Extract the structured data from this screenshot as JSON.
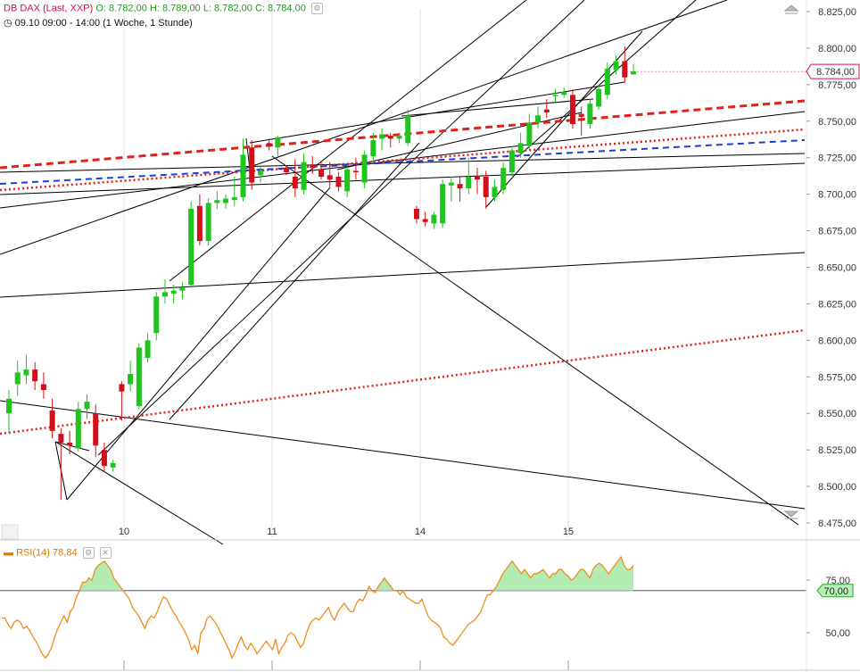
{
  "header": {
    "symbol": "DB DAX (Last, XXP)",
    "open": "O: 8.782,00",
    "high": "H: 8.789,00",
    "low": "L: 8.782,00",
    "close": "C: 8.784,00",
    "period": "09.10 09:00 - 14:00 (1 Woche, 1 Stunde)"
  },
  "rsi_panel": {
    "label": "RSI(14)",
    "value": "78,84"
  },
  "colors": {
    "up": "#1fc41f",
    "down": "#d0101a",
    "rsi_line": "#f08c1c",
    "rsi_fill": "#b2ecb2",
    "trend_red": "#e3201b",
    "trend_blue": "#1a3fd8"
  },
  "chart_data": [
    {
      "type": "candlestick",
      "title": "DB DAX (Last, XXP)",
      "y_axis": {
        "ticks": [
          "8.825,00",
          "8.800,00",
          "8.775,00",
          "8.750,00",
          "8.725,00",
          "8.700,00",
          "8.675,00",
          "8.650,00",
          "8.625,00",
          "8.600,00",
          "8.575,00",
          "8.550,00",
          "8.525,00",
          "8.500,00",
          "8.475,00"
        ],
        "ylim": [
          8470,
          8835
        ]
      },
      "x_axis": {
        "ticks": [
          "10",
          "11",
          "14",
          "15"
        ]
      },
      "last_price_label": "8.784,00",
      "last_price": 8784,
      "candles": [
        {
          "o": 8550,
          "h": 8566,
          "l": 8536,
          "c": 8560
        },
        {
          "o": 8570,
          "h": 8586,
          "l": 8562,
          "c": 8578
        },
        {
          "o": 8576,
          "h": 8590,
          "l": 8570,
          "c": 8580
        },
        {
          "o": 8580,
          "h": 8585,
          "l": 8566,
          "c": 8572
        },
        {
          "o": 8570,
          "h": 8578,
          "l": 8560,
          "c": 8566
        },
        {
          "o": 8552,
          "h": 8560,
          "l": 8533,
          "c": 8538
        },
        {
          "o": 8536,
          "h": 8540,
          "l": 8491,
          "c": 8530
        },
        {
          "o": 8530,
          "h": 8538,
          "l": 8522,
          "c": 8528
        },
        {
          "o": 8526,
          "h": 8558,
          "l": 8524,
          "c": 8553
        },
        {
          "o": 8553,
          "h": 8563,
          "l": 8546,
          "c": 8558
        },
        {
          "o": 8550,
          "h": 8556,
          "l": 8520,
          "c": 8528
        },
        {
          "o": 8525,
          "h": 8530,
          "l": 8510,
          "c": 8514
        },
        {
          "o": 8513,
          "h": 8518,
          "l": 8510,
          "c": 8516
        },
        {
          "o": 8570,
          "h": 8572,
          "l": 8545,
          "c": 8565
        },
        {
          "o": 8570,
          "h": 8586,
          "l": 8565,
          "c": 8577
        },
        {
          "o": 8555,
          "h": 8598,
          "l": 8553,
          "c": 8595
        },
        {
          "o": 8588,
          "h": 8605,
          "l": 8585,
          "c": 8600
        },
        {
          "o": 8605,
          "h": 8633,
          "l": 8600,
          "c": 8630
        },
        {
          "o": 8630,
          "h": 8642,
          "l": 8625,
          "c": 8633
        },
        {
          "o": 8632,
          "h": 8638,
          "l": 8625,
          "c": 8634
        },
        {
          "o": 8634,
          "h": 8640,
          "l": 8628,
          "c": 8636
        },
        {
          "o": 8638,
          "h": 8695,
          "l": 8636,
          "c": 8690
        },
        {
          "o": 8692,
          "h": 8700,
          "l": 8665,
          "c": 8668
        },
        {
          "o": 8668,
          "h": 8697,
          "l": 8665,
          "c": 8694
        },
        {
          "o": 8694,
          "h": 8702,
          "l": 8690,
          "c": 8696
        },
        {
          "o": 8694,
          "h": 8700,
          "l": 8690,
          "c": 8697
        },
        {
          "o": 8696,
          "h": 8712,
          "l": 8692,
          "c": 8698
        },
        {
          "o": 8698,
          "h": 8738,
          "l": 8695,
          "c": 8727
        },
        {
          "o": 8732,
          "h": 8737,
          "l": 8703,
          "c": 8708
        },
        {
          "o": 8713,
          "h": 8720,
          "l": 8708,
          "c": 8716
        },
        {
          "o": 8735,
          "h": 8738,
          "l": 8730,
          "c": 8733
        },
        {
          "o": 8732,
          "h": 8740,
          "l": 8726,
          "c": 8739
        },
        {
          "o": 8718,
          "h": 8720,
          "l": 8713,
          "c": 8715
        },
        {
          "o": 8712,
          "h": 8724,
          "l": 8698,
          "c": 8704
        },
        {
          "o": 8703,
          "h": 8728,
          "l": 8700,
          "c": 8722
        },
        {
          "o": 8720,
          "h": 8726,
          "l": 8714,
          "c": 8718
        },
        {
          "o": 8717,
          "h": 8722,
          "l": 8710,
          "c": 8712
        },
        {
          "o": 8713,
          "h": 8722,
          "l": 8705,
          "c": 8710
        },
        {
          "o": 8712,
          "h": 8715,
          "l": 8702,
          "c": 8705
        },
        {
          "o": 8702,
          "h": 8720,
          "l": 8698,
          "c": 8717
        },
        {
          "o": 8716,
          "h": 8725,
          "l": 8710,
          "c": 8715
        },
        {
          "o": 8708,
          "h": 8730,
          "l": 8704,
          "c": 8727
        },
        {
          "o": 8726,
          "h": 8742,
          "l": 8722,
          "c": 8737
        },
        {
          "o": 8738,
          "h": 8745,
          "l": 8730,
          "c": 8741
        },
        {
          "o": 8740,
          "h": 8742,
          "l": 8732,
          "c": 8738
        },
        {
          "o": 8738,
          "h": 8742,
          "l": 8735,
          "c": 8740
        },
        {
          "o": 8735,
          "h": 8758,
          "l": 8733,
          "c": 8754
        },
        {
          "o": 8690,
          "h": 8692,
          "l": 8680,
          "c": 8683
        },
        {
          "o": 8683,
          "h": 8688,
          "l": 8678,
          "c": 8681
        },
        {
          "o": 8680,
          "h": 8688,
          "l": 8676,
          "c": 8686
        },
        {
          "o": 8680,
          "h": 8710,
          "l": 8677,
          "c": 8707
        },
        {
          "o": 8706,
          "h": 8712,
          "l": 8695,
          "c": 8708
        },
        {
          "o": 8707,
          "h": 8712,
          "l": 8695,
          "c": 8704
        },
        {
          "o": 8704,
          "h": 8725,
          "l": 8700,
          "c": 8712
        },
        {
          "o": 8712,
          "h": 8718,
          "l": 8700,
          "c": 8710
        },
        {
          "o": 8712,
          "h": 8716,
          "l": 8690,
          "c": 8698
        },
        {
          "o": 8698,
          "h": 8710,
          "l": 8695,
          "c": 8705
        },
        {
          "o": 8703,
          "h": 8722,
          "l": 8700,
          "c": 8718
        },
        {
          "o": 8715,
          "h": 8732,
          "l": 8712,
          "c": 8730
        },
        {
          "o": 8728,
          "h": 8742,
          "l": 8725,
          "c": 8735
        },
        {
          "o": 8733,
          "h": 8755,
          "l": 8730,
          "c": 8749
        },
        {
          "o": 8749,
          "h": 8760,
          "l": 8745,
          "c": 8754
        },
        {
          "o": 8758,
          "h": 8765,
          "l": 8752,
          "c": 8756
        },
        {
          "o": 8768,
          "h": 8772,
          "l": 8762,
          "c": 8768
        },
        {
          "o": 8768,
          "h": 8773,
          "l": 8766,
          "c": 8770
        },
        {
          "o": 8768,
          "h": 8772,
          "l": 8745,
          "c": 8748
        },
        {
          "o": 8755,
          "h": 8760,
          "l": 8740,
          "c": 8753
        },
        {
          "o": 8748,
          "h": 8765,
          "l": 8745,
          "c": 8762
        },
        {
          "o": 8760,
          "h": 8775,
          "l": 8758,
          "c": 8772
        },
        {
          "o": 8768,
          "h": 8790,
          "l": 8765,
          "c": 8786
        },
        {
          "o": 8785,
          "h": 8795,
          "l": 8782,
          "c": 8791
        },
        {
          "o": 8791,
          "h": 8801,
          "l": 8776,
          "c": 8780
        },
        {
          "o": 8782,
          "h": 8789,
          "l": 8782,
          "c": 8784
        }
      ]
    },
    {
      "type": "line",
      "title": "RSI(14)",
      "current_value_label": "78,84",
      "level_label": "70,00",
      "level": 70,
      "y_axis": {
        "ticks": [
          "75,00",
          "50,00"
        ],
        "ylim": [
          40,
          88
        ]
      },
      "values": [
        57,
        57,
        54,
        52,
        55,
        56,
        55,
        52,
        53,
        51,
        48,
        46,
        43,
        40,
        38,
        40,
        43,
        48,
        52,
        55,
        58,
        55,
        60,
        62,
        67,
        70,
        74,
        74,
        76,
        75,
        80,
        82,
        83,
        84,
        82,
        80,
        76,
        74,
        72,
        70,
        68,
        66,
        62,
        60,
        58,
        55,
        52,
        56,
        58,
        57,
        60,
        64,
        67,
        66,
        63,
        60,
        58,
        55,
        53,
        50,
        47,
        42,
        44,
        40,
        50,
        52,
        57,
        58,
        56,
        54,
        51,
        48,
        45,
        42,
        38,
        41,
        45,
        48,
        44,
        42,
        45,
        43,
        40,
        42,
        44,
        46,
        44,
        42,
        47,
        40,
        43,
        45,
        49,
        50,
        49,
        46,
        43,
        45,
        50,
        54,
        56,
        57,
        56,
        58,
        60,
        62,
        58,
        56,
        60,
        62,
        64,
        62,
        60,
        60,
        64,
        66,
        65,
        68,
        72,
        70,
        69,
        72,
        74,
        76,
        74,
        72,
        70,
        70,
        68,
        70,
        67,
        66,
        65,
        64,
        64,
        66,
        62,
        58,
        56,
        55,
        54,
        52,
        48,
        47,
        45,
        44,
        46,
        48,
        50,
        52,
        54,
        55,
        56,
        58,
        60,
        64,
        68,
        68,
        70,
        72,
        75,
        78,
        80,
        82,
        84,
        82,
        80,
        78,
        80,
        78,
        76,
        78,
        78,
        79,
        80,
        78,
        76,
        78,
        78,
        80,
        80,
        78,
        77,
        75,
        76,
        78,
        80,
        80,
        78,
        76,
        80,
        82,
        83,
        82,
        80,
        78,
        80,
        82,
        84,
        86,
        82,
        80,
        80,
        82
      ]
    }
  ]
}
